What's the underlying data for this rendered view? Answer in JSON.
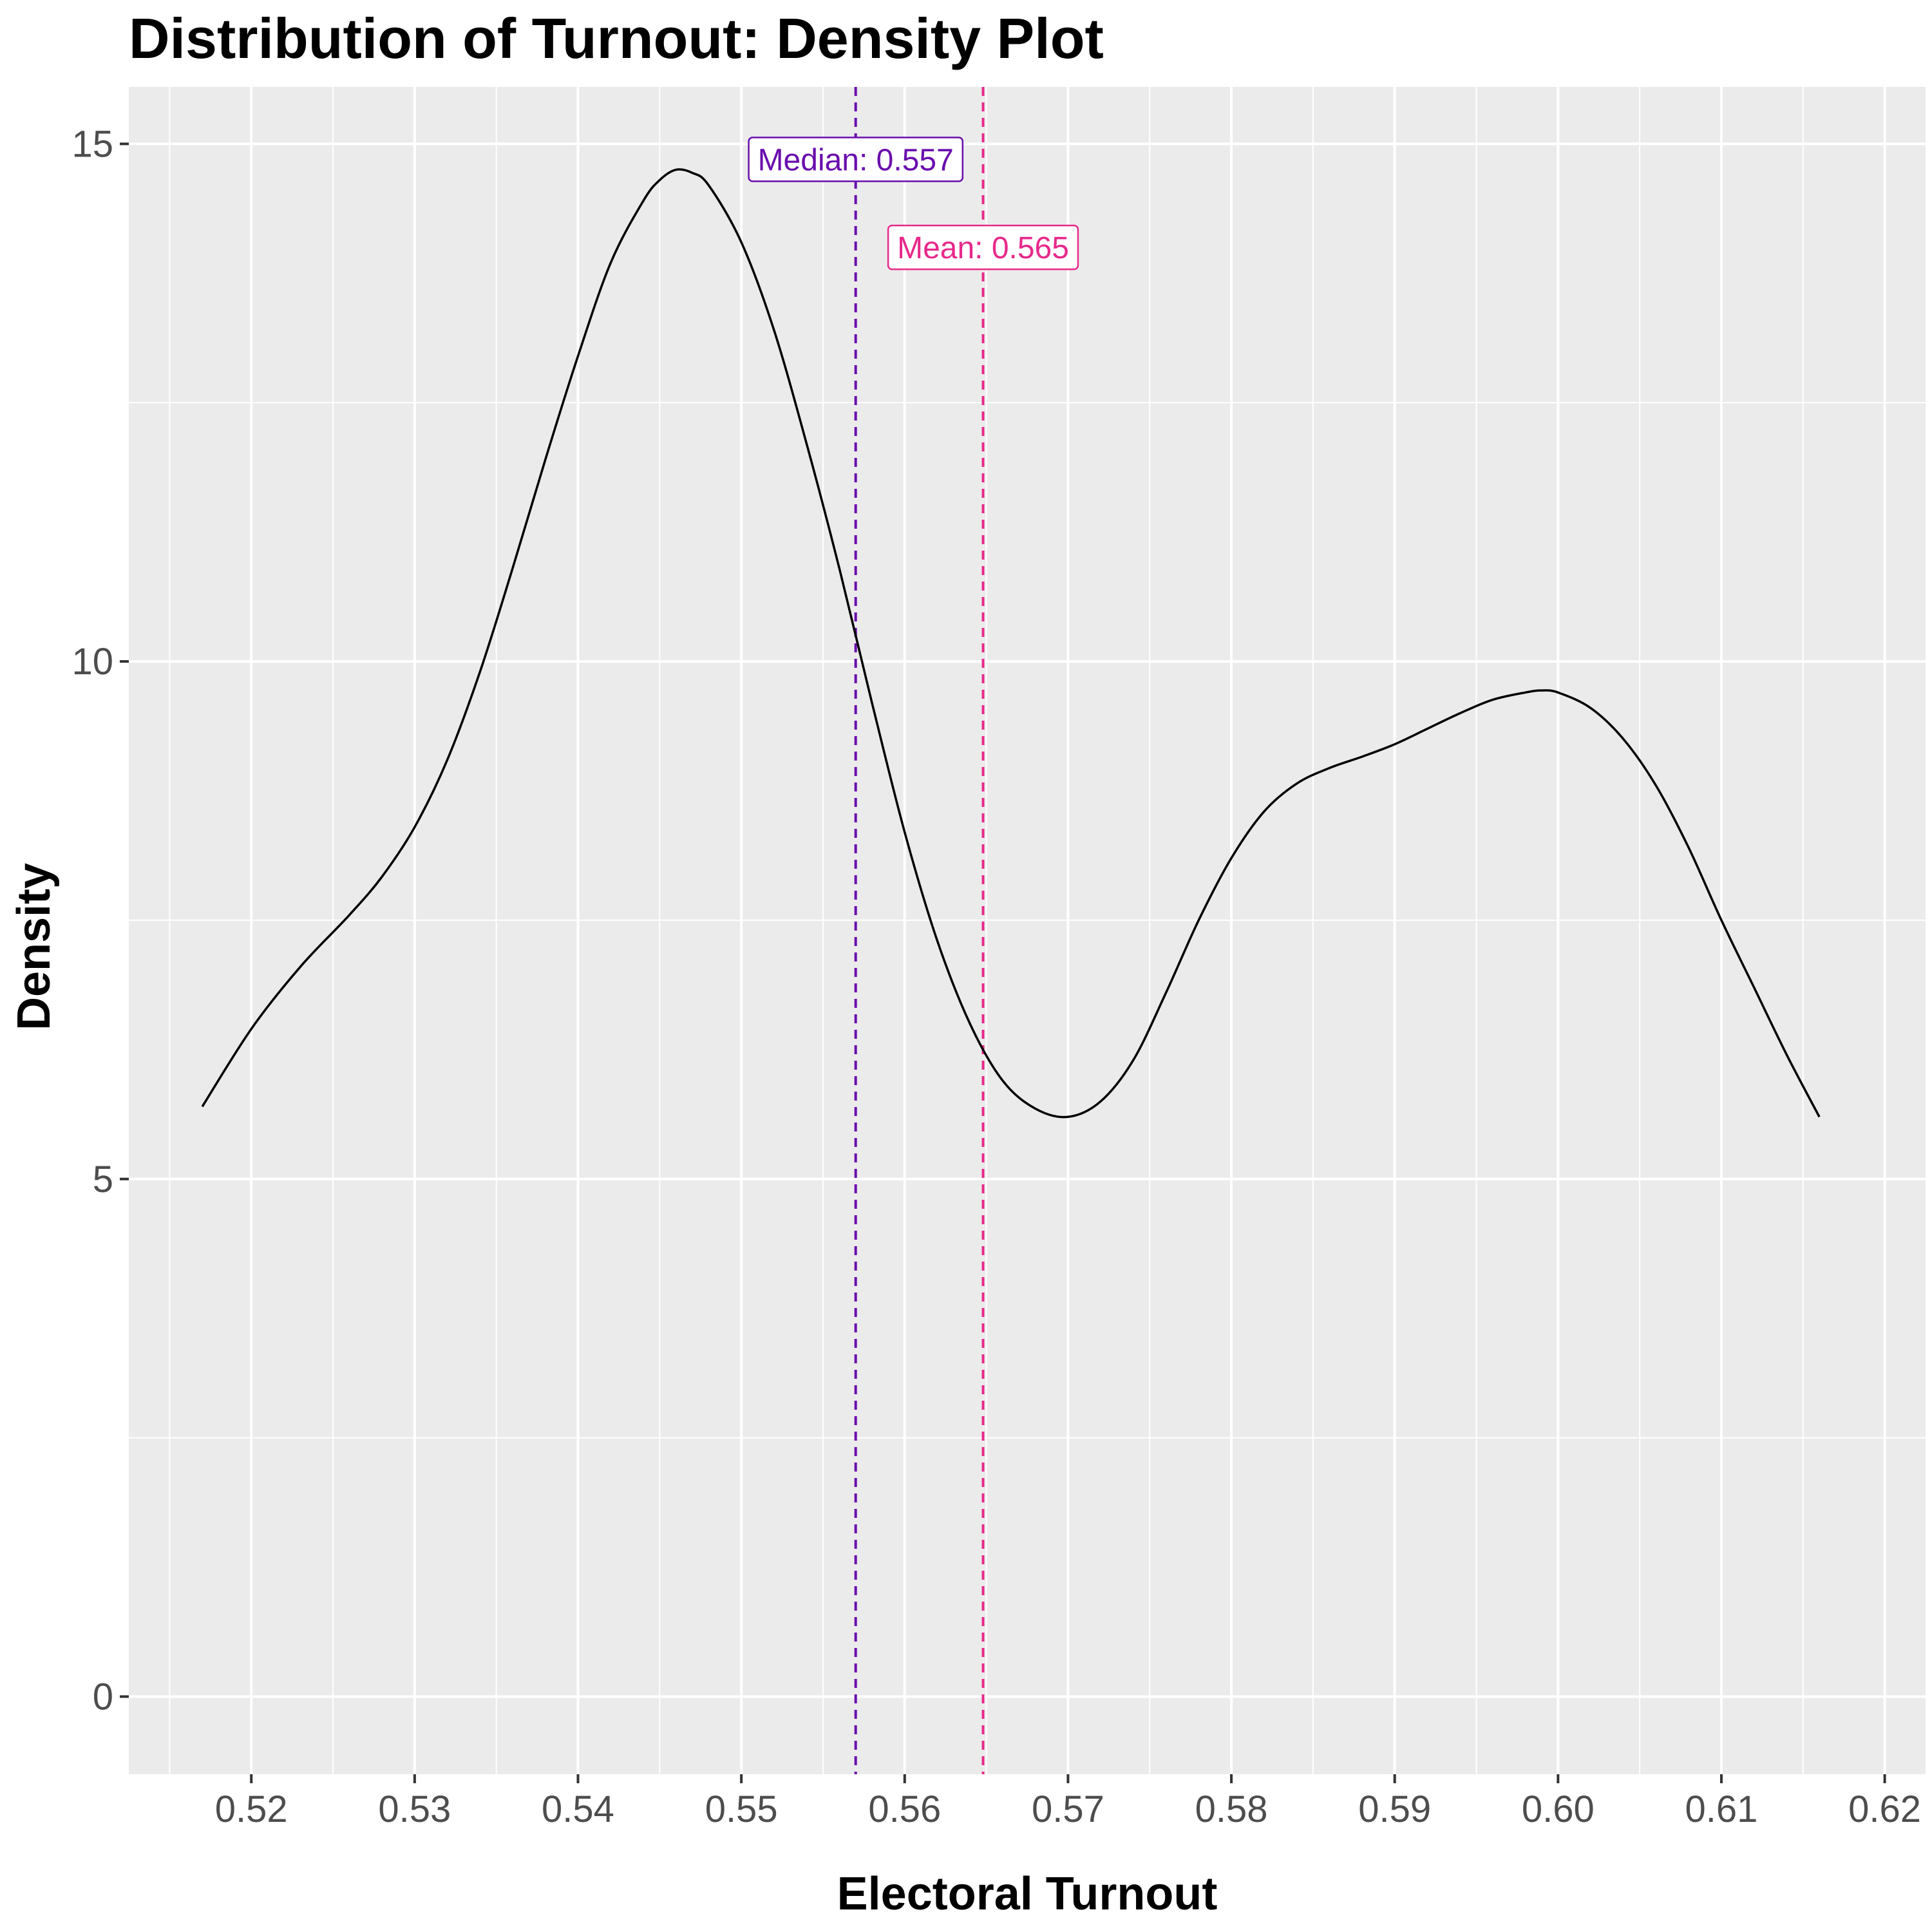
{
  "chart_data": {
    "type": "line",
    "title": "Distribution of Turnout: Density Plot",
    "xlabel": "Electoral Turnout",
    "ylabel": "Density",
    "xlim": [
      0.5125,
      0.6225
    ],
    "ylim": [
      -0.75,
      15.55
    ],
    "x_ticks": [
      0.52,
      0.53,
      0.54,
      0.55,
      0.56,
      0.57,
      0.58,
      0.59,
      0.6,
      0.61,
      0.62
    ],
    "x_tick_labels": [
      "0.52",
      "0.53",
      "0.54",
      "0.55",
      "0.56",
      "0.57",
      "0.58",
      "0.59",
      "0.60",
      "0.61",
      "0.62"
    ],
    "y_ticks": [
      0,
      5,
      10,
      15
    ],
    "y_tick_labels": [
      "0",
      "5",
      "10",
      "15"
    ],
    "grid": true,
    "background": "#ebebeb",
    "series": [
      {
        "color": "#000000",
        "x": [
          0.517,
          0.52,
          0.523,
          0.526,
          0.528,
          0.53,
          0.532,
          0.534,
          0.536,
          0.538,
          0.54,
          0.542,
          0.544,
          0.545,
          0.546,
          0.547,
          0.548,
          0.55,
          0.552,
          0.554,
          0.556,
          0.558,
          0.56,
          0.562,
          0.564,
          0.566,
          0.568,
          0.57,
          0.572,
          0.574,
          0.576,
          0.578,
          0.58,
          0.582,
          0.584,
          0.586,
          0.588,
          0.59,
          0.592,
          0.594,
          0.596,
          0.598,
          0.599,
          0.6,
          0.602,
          0.604,
          0.606,
          0.608,
          0.61,
          0.612,
          0.614,
          0.616
        ],
        "y": [
          5.7,
          6.45,
          7.05,
          7.55,
          7.92,
          8.4,
          9.05,
          9.9,
          10.9,
          11.95,
          12.95,
          13.85,
          14.45,
          14.65,
          14.75,
          14.72,
          14.6,
          14.05,
          13.2,
          12.1,
          10.9,
          9.6,
          8.35,
          7.3,
          6.5,
          5.95,
          5.68,
          5.6,
          5.75,
          6.15,
          6.8,
          7.5,
          8.1,
          8.55,
          8.82,
          8.97,
          9.08,
          9.2,
          9.35,
          9.5,
          9.63,
          9.7,
          9.72,
          9.7,
          9.55,
          9.25,
          8.8,
          8.2,
          7.5,
          6.85,
          6.2,
          5.6
        ]
      }
    ],
    "reference_lines": [
      {
        "x": 0.557,
        "color": "#6a0dad",
        "label": "Median: 0.557",
        "label_y": 14.85
      },
      {
        "x": 0.5648,
        "color": "#e7298a",
        "label": "Mean: 0.565",
        "label_y": 14.0
      }
    ]
  }
}
